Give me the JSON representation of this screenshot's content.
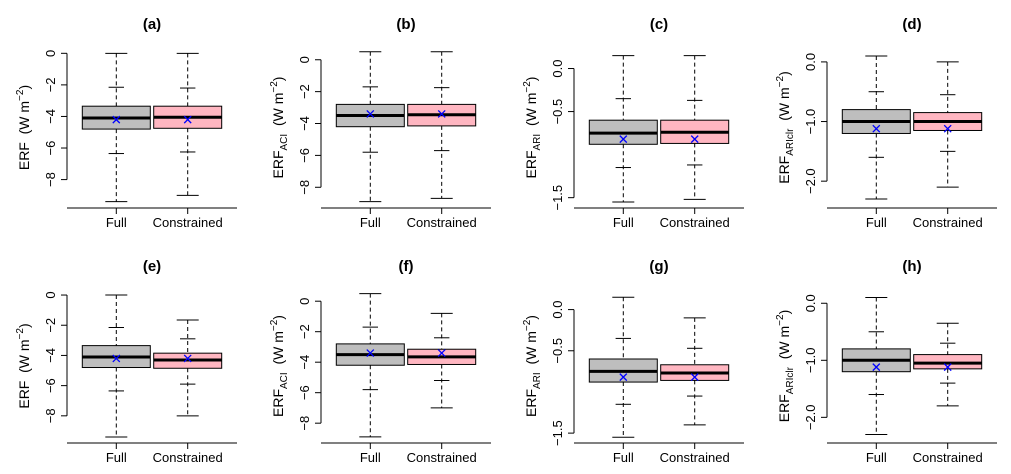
{
  "colors": {
    "full": "#bebebe",
    "constrained": "#ffb6c1",
    "mean_marker": "#0000ff",
    "ink": "#000000"
  },
  "chart_data": [
    {
      "type": "box",
      "title": "(a)",
      "ylabel": {
        "main": "ERF",
        "sub": "",
        "unit": "(W m",
        "exp": "−2",
        "close": ")"
      },
      "yticks": [
        0,
        -2,
        -4,
        -6,
        -8
      ],
      "ytick_labels": [
        "0",
        "−2",
        "−4",
        "−6",
        "−8"
      ],
      "ylim": [
        -9.8,
        0.4
      ],
      "categories": [
        "Full",
        "Constrained"
      ],
      "boxes": [
        {
          "name": "Full",
          "min": -9.4,
          "whisker_low": -6.35,
          "q1": -4.8,
          "median": -4.1,
          "q3": -3.35,
          "whisker_high": -2.15,
          "max": 0.0,
          "mean": -4.2
        },
        {
          "name": "Constrained",
          "min": -9.0,
          "whisker_low": -6.25,
          "q1": -4.75,
          "median": -4.05,
          "q3": -3.35,
          "whisker_high": -2.2,
          "max": 0.0,
          "mean": -4.2
        }
      ]
    },
    {
      "type": "box",
      "title": "(b)",
      "ylabel": {
        "main": "ERF",
        "sub": "ACI",
        "unit": "(W m",
        "exp": "−2",
        "close": ")"
      },
      "yticks": [
        0,
        -2,
        -4,
        -6,
        -8
      ],
      "ytick_labels": [
        "0",
        "−2",
        "−4",
        "−6",
        "−8"
      ],
      "ylim": [
        -9.3,
        0.8
      ],
      "categories": [
        "Full",
        "Constrained"
      ],
      "boxes": [
        {
          "name": "Full",
          "min": -8.9,
          "whisker_low": -5.8,
          "q1": -4.2,
          "median": -3.5,
          "q3": -2.8,
          "whisker_high": -1.7,
          "max": 0.5,
          "mean": -3.4
        },
        {
          "name": "Constrained",
          "min": -8.7,
          "whisker_low": -5.7,
          "q1": -4.15,
          "median": -3.45,
          "q3": -2.8,
          "whisker_high": -1.75,
          "max": 0.5,
          "mean": -3.4
        }
      ]
    },
    {
      "type": "box",
      "title": "(c)",
      "ylabel": {
        "main": "ERF",
        "sub": "ARI",
        "unit": "(W m",
        "exp": "−2",
        "close": ")"
      },
      "yticks": [
        0.0,
        -0.5,
        -1.5
      ],
      "ytick_labels": [
        "0.0",
        "−0.5",
        "−1.5"
      ],
      "ylim": [
        -1.62,
        0.25
      ],
      "categories": [
        "Full",
        "Constrained"
      ],
      "boxes": [
        {
          "name": "Full",
          "min": -1.55,
          "whisker_low": -1.15,
          "q1": -0.88,
          "median": -0.75,
          "q3": -0.6,
          "whisker_high": -0.35,
          "max": 0.15,
          "mean": -0.82
        },
        {
          "name": "Constrained",
          "min": -1.52,
          "whisker_low": -1.12,
          "q1": -0.87,
          "median": -0.74,
          "q3": -0.6,
          "whisker_high": -0.37,
          "max": 0.15,
          "mean": -0.82
        }
      ]
    },
    {
      "type": "box",
      "title": "(d)",
      "ylabel": {
        "main": "ERF",
        "sub": "ARIclr",
        "unit": "(W m",
        "exp": "−2",
        "close": ")"
      },
      "yticks": [
        0.0,
        -1.0,
        -2.0
      ],
      "ytick_labels": [
        "0.0",
        "−1.0",
        "−2.0"
      ],
      "ylim": [
        -2.45,
        0.25
      ],
      "categories": [
        "Full",
        "Constrained"
      ],
      "boxes": [
        {
          "name": "Full",
          "min": -2.3,
          "whisker_low": -1.6,
          "q1": -1.2,
          "median": -1.0,
          "q3": -0.8,
          "whisker_high": -0.5,
          "max": 0.1,
          "mean": -1.12
        },
        {
          "name": "Constrained",
          "min": -2.1,
          "whisker_low": -1.5,
          "q1": -1.15,
          "median": -1.0,
          "q3": -0.85,
          "whisker_high": -0.55,
          "max": 0.0,
          "mean": -1.12
        }
      ]
    },
    {
      "type": "box",
      "title": "(e)",
      "ylabel": {
        "main": "ERF",
        "sub": "",
        "unit": "(W m",
        "exp": "−2",
        "close": ")"
      },
      "yticks": [
        0,
        -2,
        -4,
        -6,
        -8
      ],
      "ytick_labels": [
        "0",
        "−2",
        "−4",
        "−6",
        "−8"
      ],
      "ylim": [
        -9.8,
        0.4
      ],
      "categories": [
        "Full",
        "Constrained"
      ],
      "boxes": [
        {
          "name": "Full",
          "min": -9.4,
          "whisker_low": -6.35,
          "q1": -4.8,
          "median": -4.1,
          "q3": -3.35,
          "whisker_high": -2.15,
          "max": 0.0,
          "mean": -4.2
        },
        {
          "name": "Constrained",
          "min": -8.0,
          "whisker_low": -5.9,
          "q1": -4.85,
          "median": -4.3,
          "q3": -3.85,
          "whisker_high": -2.9,
          "max": -1.65,
          "mean": -4.2
        }
      ]
    },
    {
      "type": "box",
      "title": "(f)",
      "ylabel": {
        "main": "ERF",
        "sub": "ACI",
        "unit": "(W m",
        "exp": "−2",
        "close": ")"
      },
      "yticks": [
        0,
        -2,
        -4,
        -6,
        -8
      ],
      "ytick_labels": [
        "0",
        "−2",
        "−4",
        "−6",
        "−8"
      ],
      "ylim": [
        -9.3,
        0.8
      ],
      "categories": [
        "Full",
        "Constrained"
      ],
      "boxes": [
        {
          "name": "Full",
          "min": -8.9,
          "whisker_low": -5.8,
          "q1": -4.2,
          "median": -3.5,
          "q3": -2.8,
          "whisker_high": -1.7,
          "max": 0.5,
          "mean": -3.4
        },
        {
          "name": "Constrained",
          "min": -7.0,
          "whisker_low": -5.2,
          "q1": -4.15,
          "median": -3.65,
          "q3": -3.15,
          "whisker_high": -2.4,
          "max": -0.8,
          "mean": -3.4
        }
      ]
    },
    {
      "type": "box",
      "title": "(g)",
      "ylabel": {
        "main": "ERF",
        "sub": "ARI",
        "unit": "(W m",
        "exp": "−2",
        "close": ")"
      },
      "yticks": [
        0.0,
        -0.5,
        -1.5
      ],
      "ytick_labels": [
        "0.0",
        "−0.5",
        "−1.5"
      ],
      "ylim": [
        -1.62,
        0.25
      ],
      "categories": [
        "Full",
        "Constrained"
      ],
      "boxes": [
        {
          "name": "Full",
          "min": -1.55,
          "whisker_low": -1.15,
          "q1": -0.88,
          "median": -0.75,
          "q3": -0.6,
          "whisker_high": -0.35,
          "max": 0.15,
          "mean": -0.82
        },
        {
          "name": "Constrained",
          "min": -1.4,
          "whisker_low": -1.05,
          "q1": -0.86,
          "median": -0.77,
          "q3": -0.67,
          "whisker_high": -0.47,
          "max": -0.1,
          "mean": -0.82
        }
      ]
    },
    {
      "type": "box",
      "title": "(h)",
      "ylabel": {
        "main": "ERF",
        "sub": "ARIclr",
        "unit": "(W m",
        "exp": "−2",
        "close": ")"
      },
      "yticks": [
        0.0,
        -1.0,
        -2.0
      ],
      "ytick_labels": [
        "0.0",
        "−1.0",
        "−2.0"
      ],
      "ylim": [
        -2.45,
        0.25
      ],
      "categories": [
        "Full",
        "Constrained"
      ],
      "boxes": [
        {
          "name": "Full",
          "min": -2.3,
          "whisker_low": -1.6,
          "q1": -1.2,
          "median": -1.0,
          "q3": -0.8,
          "whisker_high": -0.5,
          "max": 0.1,
          "mean": -1.12
        },
        {
          "name": "Constrained",
          "min": -1.8,
          "whisker_low": -1.4,
          "q1": -1.15,
          "median": -1.05,
          "q3": -0.9,
          "whisker_high": -0.7,
          "max": -0.35,
          "mean": -1.12
        }
      ]
    }
  ]
}
